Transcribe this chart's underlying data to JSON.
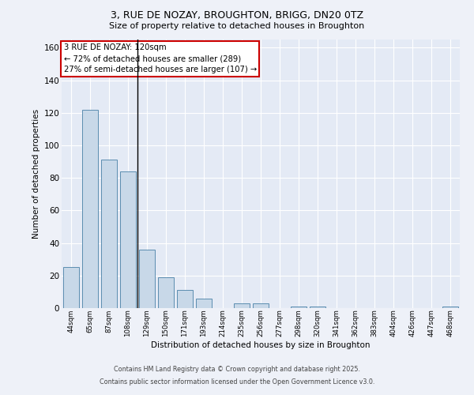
{
  "title1": "3, RUE DE NOZAY, BROUGHTON, BRIGG, DN20 0TZ",
  "title2": "Size of property relative to detached houses in Broughton",
  "xlabel": "Distribution of detached houses by size in Broughton",
  "ylabel": "Number of detached properties",
  "categories": [
    "44sqm",
    "65sqm",
    "87sqm",
    "108sqm",
    "129sqm",
    "150sqm",
    "171sqm",
    "193sqm",
    "214sqm",
    "235sqm",
    "256sqm",
    "277sqm",
    "298sqm",
    "320sqm",
    "341sqm",
    "362sqm",
    "383sqm",
    "404sqm",
    "426sqm",
    "447sqm",
    "468sqm"
  ],
  "values": [
    25,
    122,
    91,
    84,
    36,
    19,
    11,
    6,
    0,
    3,
    3,
    0,
    1,
    1,
    0,
    0,
    0,
    0,
    0,
    0,
    1
  ],
  "bar_color": "#c8d8e8",
  "bar_edge_color": "#5b8db0",
  "annotation_line1": "3 RUE DE NOZAY: 120sqm",
  "annotation_line2": "← 72% of detached houses are smaller (289)",
  "annotation_line3": "27% of semi-detached houses are larger (107) →",
  "annotation_box_color": "#ffffff",
  "annotation_box_edge_color": "#cc0000",
  "vline_x": 3.5,
  "ylim": [
    0,
    165
  ],
  "yticks": [
    0,
    20,
    40,
    60,
    80,
    100,
    120,
    140,
    160
  ],
  "fig_bg_color": "#eef1f8",
  "axes_bg_color": "#e4eaf5",
  "grid_color": "#ffffff",
  "footer1": "Contains HM Land Registry data © Crown copyright and database right 2025.",
  "footer2": "Contains public sector information licensed under the Open Government Licence v3.0."
}
